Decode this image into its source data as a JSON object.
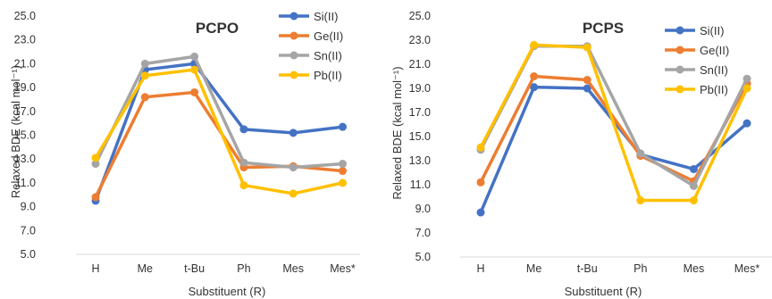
{
  "chart_data": [
    {
      "type": "line",
      "title": "PCPO",
      "xlabel": "Substituent (R)",
      "ylabel": "Relaxed BDE (kcal mol⁻¹)",
      "categories": [
        "H",
        "Me",
        "t-Bu",
        "Ph",
        "Mes",
        "Mes*"
      ],
      "ylim": [
        5.0,
        25.0
      ],
      "yticks": [
        "5.0",
        "7.0",
        "9.0",
        "11.0",
        "13.0",
        "15.0",
        "17.0",
        "19.0",
        "21.0",
        "23.0",
        "25.0"
      ],
      "grid": false,
      "legend_position": "top-right",
      "series": [
        {
          "name": "Si(II)",
          "color": "#4472C4",
          "values": [
            9.5,
            20.5,
            21.0,
            15.5,
            15.2,
            15.7
          ]
        },
        {
          "name": "Ge(II)",
          "color": "#ED7D31",
          "values": [
            9.8,
            18.2,
            18.6,
            12.3,
            12.4,
            12.0
          ]
        },
        {
          "name": "Sn(II)",
          "color": "#A5A5A5",
          "values": [
            12.6,
            21.0,
            21.6,
            12.7,
            12.3,
            12.6
          ]
        },
        {
          "name": "Pb(II)",
          "color": "#FFC000",
          "values": [
            13.1,
            20.0,
            20.5,
            10.8,
            10.1,
            11.0
          ]
        }
      ]
    },
    {
      "type": "line",
      "title": "PCPS",
      "xlabel": "Substituent (R)",
      "ylabel": "Relaxed BDE (kcal mol⁻¹)",
      "categories": [
        "H",
        "Me",
        "t-Bu",
        "Ph",
        "Mes",
        "Mes*"
      ],
      "ylim": [
        5.0,
        25.0
      ],
      "yticks": [
        "5.0",
        "7.0",
        "9.0",
        "11.0",
        "13.0",
        "15.0",
        "17.0",
        "19.0",
        "21.0",
        "23.0",
        "25.0"
      ],
      "grid": false,
      "legend_position": "top-right",
      "series": [
        {
          "name": "Si(II)",
          "color": "#4472C4",
          "values": [
            8.7,
            19.1,
            19.0,
            13.5,
            12.3,
            16.1
          ]
        },
        {
          "name": "Ge(II)",
          "color": "#ED7D31",
          "values": [
            11.2,
            20.0,
            19.7,
            13.4,
            11.3,
            19.4
          ]
        },
        {
          "name": "Sn(II)",
          "color": "#A5A5A5",
          "values": [
            13.9,
            22.5,
            22.5,
            13.6,
            10.9,
            19.8
          ]
        },
        {
          "name": "Pb(II)",
          "color": "#FFC000",
          "values": [
            14.1,
            22.6,
            22.4,
            9.7,
            9.7,
            19.0
          ]
        }
      ]
    }
  ]
}
